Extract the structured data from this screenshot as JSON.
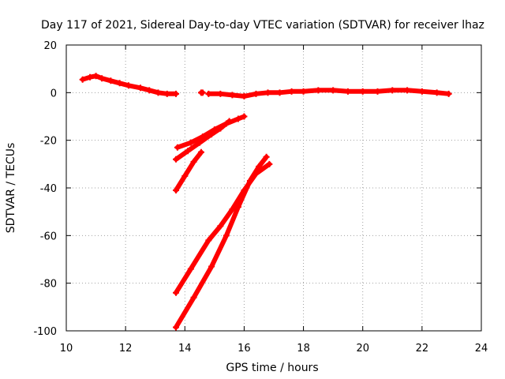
{
  "chart_data": {
    "type": "scatter",
    "title": "Day 117 of 2021, Sidereal Day-to-day VTEC variation (SDTVAR) for receiver lhaz",
    "xlabel": "GPS time / hours",
    "ylabel": "SDTVAR / TECUs",
    "xlim": [
      10,
      24
    ],
    "ylim": [
      -100,
      20
    ],
    "xticks": [
      10,
      12,
      14,
      16,
      18,
      20,
      22,
      24
    ],
    "yticks": [
      20,
      0,
      -20,
      -40,
      -60,
      -80,
      -100
    ],
    "grid": true,
    "color": "#ff0000",
    "series": [
      {
        "x": [
          10.55,
          10.8,
          11.0,
          11.2,
          11.5,
          11.8,
          12.1,
          12.5,
          12.8,
          13.1,
          13.4,
          13.7
        ],
        "y": [
          5.5,
          6.5,
          7,
          6,
          5,
          4,
          3,
          2,
          1,
          0,
          -0.5,
          -0.5
        ]
      },
      {
        "x": [
          14.55,
          14.6
        ],
        "y": [
          0,
          0
        ]
      },
      {
        "x": [
          14.8,
          15.2,
          15.6,
          16.0,
          16.4,
          16.8,
          17.2,
          17.6,
          18.0,
          18.5,
          19.0,
          19.5,
          20.0,
          20.5,
          21.0,
          21.5,
          22.0,
          22.5,
          22.9
        ],
        "y": [
          -0.5,
          -0.5,
          -1,
          -1.5,
          -0.5,
          0,
          0,
          0.5,
          0.5,
          1,
          1,
          0.5,
          0.5,
          0.5,
          1,
          1,
          0.5,
          0,
          -0.5
        ]
      },
      {
        "x": [
          13.75,
          14.2,
          14.6,
          15.0,
          15.4,
          15.8,
          16.0
        ],
        "y": [
          -23,
          -21,
          -18.5,
          -15.5,
          -13,
          -11,
          -10
        ]
      },
      {
        "x": [
          13.7,
          14.1,
          14.5,
          14.9,
          15.2,
          15.5
        ],
        "y": [
          -28,
          -24.5,
          -21,
          -17.5,
          -15,
          -12
        ]
      },
      {
        "x": [
          13.7,
          14.0,
          14.3,
          14.55
        ],
        "y": [
          -41,
          -35,
          -29,
          -25
        ]
      },
      {
        "x": [
          13.7,
          14.2,
          14.8,
          15.2,
          15.6,
          16.0,
          16.4,
          16.85
        ],
        "y": [
          -84,
          -74,
          -62,
          -56,
          -49,
          -41,
          -34,
          -30
        ]
      },
      {
        "x": [
          13.7,
          14.3,
          14.9,
          15.4,
          15.8,
          16.2,
          16.5,
          16.75
        ],
        "y": [
          -98.5,
          -86,
          -73,
          -60,
          -48,
          -37,
          -31,
          -27
        ]
      }
    ]
  }
}
